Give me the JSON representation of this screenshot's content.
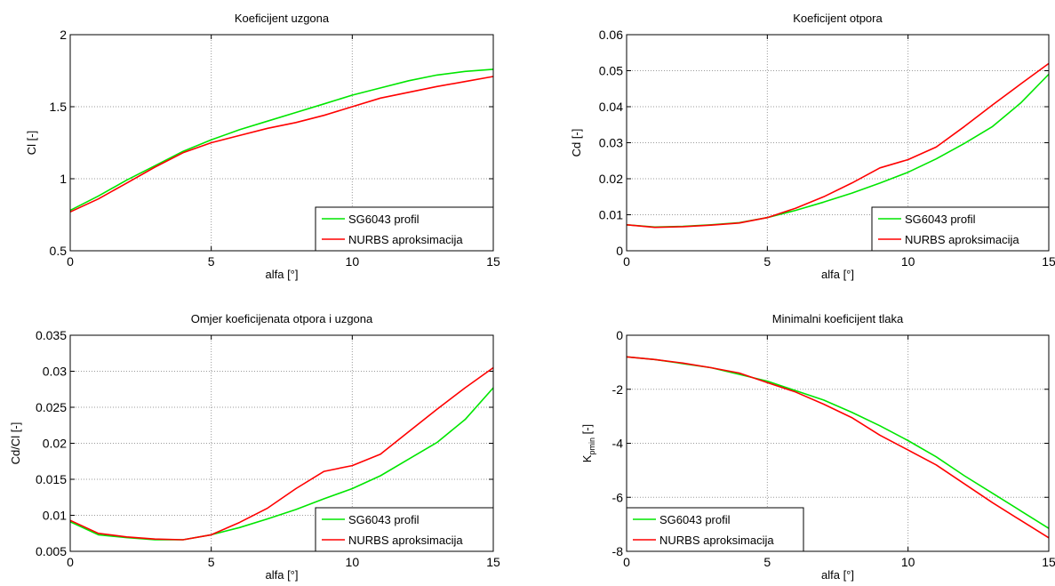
{
  "colors": {
    "sg": "#00e600",
    "nurbs": "#ff0000",
    "grid": "#9a9a9a",
    "axis": "#000000"
  },
  "chart_data": [
    {
      "type": "line",
      "title": "Koeficijent uzgona",
      "xlabel": "alfa [°]",
      "ylabel": "Cl [-]",
      "xlim": [
        0,
        15
      ],
      "ylim": [
        0.5,
        2
      ],
      "xticks": [
        0,
        5,
        10,
        15
      ],
      "xtick_labels": [
        "0",
        "5",
        "10",
        "15"
      ],
      "yticks": [
        0.5,
        1,
        1.5,
        2
      ],
      "ytick_labels": [
        "0.5",
        "1",
        "1.5",
        "2"
      ],
      "grid": true,
      "legend_position": "bottom-right",
      "x": [
        0,
        1,
        2,
        3,
        4,
        5,
        6,
        7,
        8,
        9,
        10,
        11,
        12,
        13,
        14,
        15
      ],
      "series": [
        {
          "name": "SG6043 profil",
          "color": "#00e600",
          "values": [
            0.78,
            0.88,
            0.99,
            1.09,
            1.19,
            1.27,
            1.34,
            1.4,
            1.46,
            1.52,
            1.58,
            1.63,
            1.68,
            1.72,
            1.745,
            1.76
          ]
        },
        {
          "name": "NURBS aproksimacija",
          "color": "#ff0000",
          "values": [
            0.77,
            0.86,
            0.97,
            1.08,
            1.18,
            1.25,
            1.3,
            1.35,
            1.39,
            1.44,
            1.5,
            1.56,
            1.6,
            1.64,
            1.675,
            1.71
          ]
        }
      ]
    },
    {
      "type": "line",
      "title": "Koeficijent otpora",
      "xlabel": "alfa [°]",
      "ylabel": "Cd [-]",
      "xlim": [
        0,
        15
      ],
      "ylim": [
        0,
        0.06
      ],
      "xticks": [
        0,
        5,
        10,
        15
      ],
      "xtick_labels": [
        "0",
        "5",
        "10",
        "15"
      ],
      "yticks": [
        0,
        0.01,
        0.02,
        0.03,
        0.04,
        0.05,
        0.06
      ],
      "ytick_labels": [
        "0",
        "0.01",
        "0.02",
        "0.03",
        "0.04",
        "0.05",
        "0.06"
      ],
      "grid": true,
      "legend_position": "bottom-right",
      "x": [
        0,
        1,
        2,
        3,
        4,
        5,
        6,
        7,
        8,
        9,
        10,
        11,
        12,
        13,
        14,
        15
      ],
      "series": [
        {
          "name": "SG6043 profil",
          "color": "#00e600",
          "values": [
            0.0072,
            0.0066,
            0.0068,
            0.0072,
            0.0078,
            0.0092,
            0.0112,
            0.0135,
            0.016,
            0.0188,
            0.0218,
            0.0255,
            0.0298,
            0.0345,
            0.041,
            0.049
          ]
        },
        {
          "name": "NURBS aproksimacija",
          "color": "#ff0000",
          "values": [
            0.0072,
            0.0065,
            0.0067,
            0.0071,
            0.0077,
            0.0092,
            0.0118,
            0.015,
            0.0188,
            0.023,
            0.0253,
            0.0288,
            0.0345,
            0.0405,
            0.0463,
            0.052
          ]
        }
      ]
    },
    {
      "type": "line",
      "title": "Omjer koeficijenata otpora i uzgona",
      "xlabel": "alfa [°]",
      "ylabel": "Cd/Cl [-]",
      "xlim": [
        0,
        15
      ],
      "ylim": [
        0.005,
        0.035
      ],
      "xticks": [
        0,
        5,
        10,
        15
      ],
      "xtick_labels": [
        "0",
        "5",
        "10",
        "15"
      ],
      "yticks": [
        0.005,
        0.01,
        0.015,
        0.02,
        0.025,
        0.03,
        0.035
      ],
      "ytick_labels": [
        "0.005",
        "0.01",
        "0.015",
        "0.02",
        "0.025",
        "0.03",
        "0.035"
      ],
      "grid": true,
      "legend_position": "bottom-right",
      "x": [
        0,
        1,
        2,
        3,
        4,
        5,
        6,
        7,
        8,
        9,
        10,
        11,
        12,
        13,
        14,
        15
      ],
      "series": [
        {
          "name": "SG6043 profil",
          "color": "#00e600",
          "values": [
            0.0091,
            0.0073,
            0.0069,
            0.0066,
            0.0066,
            0.0073,
            0.0083,
            0.0095,
            0.0108,
            0.0123,
            0.0137,
            0.0155,
            0.0178,
            0.0201,
            0.0233,
            0.0277
          ]
        },
        {
          "name": "NURBS aproksimacija",
          "color": "#ff0000",
          "values": [
            0.0093,
            0.0075,
            0.007,
            0.0067,
            0.0066,
            0.0073,
            0.009,
            0.011,
            0.0137,
            0.0161,
            0.0169,
            0.0185,
            0.0216,
            0.0247,
            0.0277,
            0.0305
          ]
        }
      ]
    },
    {
      "type": "line",
      "title": "Minimalni koeficijent tlaka",
      "xlabel": "alfa [°]",
      "ylabel_main": "K",
      "ylabel_sub": "pmin",
      "ylabel_unit": " [-]",
      "xlim": [
        0,
        15
      ],
      "ylim": [
        -8,
        0
      ],
      "xticks": [
        0,
        5,
        10,
        15
      ],
      "xtick_labels": [
        "0",
        "5",
        "10",
        "15"
      ],
      "yticks": [
        -8,
        -6,
        -4,
        -2,
        0
      ],
      "ytick_labels": [
        "-8",
        "-6",
        "-4",
        "-2",
        "0"
      ],
      "grid": true,
      "legend_position": "bottom-left",
      "x": [
        0,
        1,
        2,
        3,
        4,
        5,
        6,
        7,
        8,
        9,
        10,
        11,
        12,
        13,
        14,
        15
      ],
      "series": [
        {
          "name": "SG6043 profil",
          "color": "#00e600",
          "values": [
            -0.8,
            -0.9,
            -1.05,
            -1.2,
            -1.45,
            -1.7,
            -2.05,
            -2.4,
            -2.85,
            -3.35,
            -3.9,
            -4.5,
            -5.2,
            -5.85,
            -6.5,
            -7.15
          ]
        },
        {
          "name": "NURBS aproksimacija",
          "color": "#ff0000",
          "values": [
            -0.8,
            -0.9,
            -1.03,
            -1.2,
            -1.4,
            -1.75,
            -2.1,
            -2.55,
            -3.05,
            -3.7,
            -4.25,
            -4.8,
            -5.5,
            -6.2,
            -6.85,
            -7.5
          ]
        }
      ]
    }
  ]
}
